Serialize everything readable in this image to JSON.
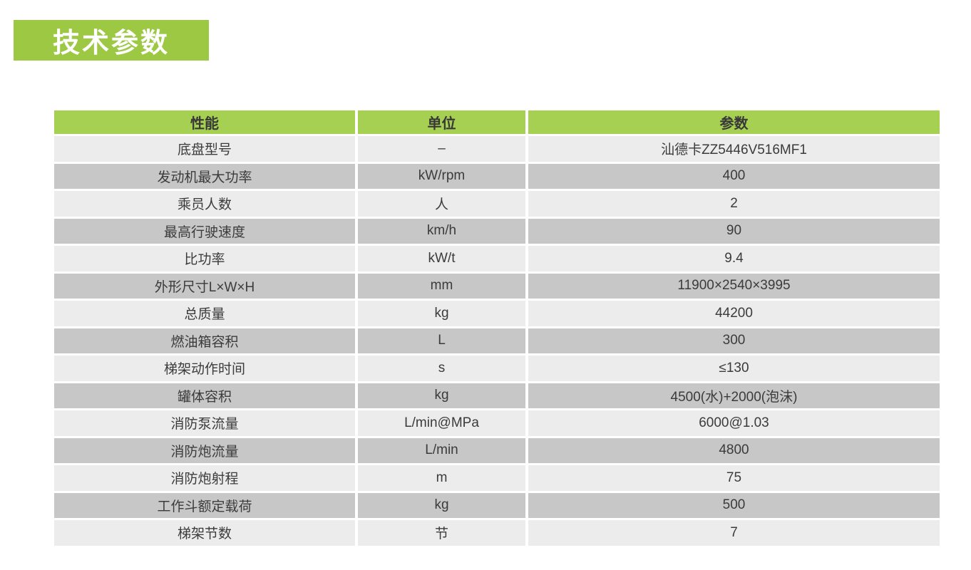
{
  "page": {
    "section_title": "技术参数"
  },
  "table": {
    "columns": [
      "性能",
      "单位",
      "参数"
    ],
    "rows": [
      {
        "label": "底盘型号",
        "unit": "–",
        "value": "汕德卡ZZ5446V516MF1"
      },
      {
        "label": "发动机最大功率",
        "unit": "kW/rpm",
        "value": "400"
      },
      {
        "label": "乘员人数",
        "unit": "人",
        "value": "2"
      },
      {
        "label": "最高行驶速度",
        "unit": "km/h",
        "value": "90"
      },
      {
        "label": "比功率",
        "unit": "kW/t",
        "value": "9.4"
      },
      {
        "label": "外形尺寸L×W×H",
        "unit": "mm",
        "value": "11900×2540×3995"
      },
      {
        "label": "总质量",
        "unit": "kg",
        "value": "44200"
      },
      {
        "label": "燃油箱容积",
        "unit": "L",
        "value": "300"
      },
      {
        "label": "梯架动作时间",
        "unit": "s",
        "value": "≤130"
      },
      {
        "label": "罐体容积",
        "unit": "kg",
        "value": "4500(水)+2000(泡沫)"
      },
      {
        "label": "消防泵流量",
        "unit": "L/min@MPa",
        "value": "6000@1.03"
      },
      {
        "label": "消防炮流量",
        "unit": "L/min",
        "value": "4800"
      },
      {
        "label": "消防炮射程",
        "unit": "m",
        "value": "75"
      },
      {
        "label": "工作斗额定载荷",
        "unit": "kg",
        "value": "500"
      },
      {
        "label": "梯架节数",
        "unit": "节",
        "value": "7"
      }
    ]
  },
  "colors": {
    "badge_green": "#9cc844",
    "header_green": "#a6d052",
    "row_light": "#ececec",
    "row_dark": "#c7c7c7",
    "cell_text": "#3b3b3b"
  }
}
